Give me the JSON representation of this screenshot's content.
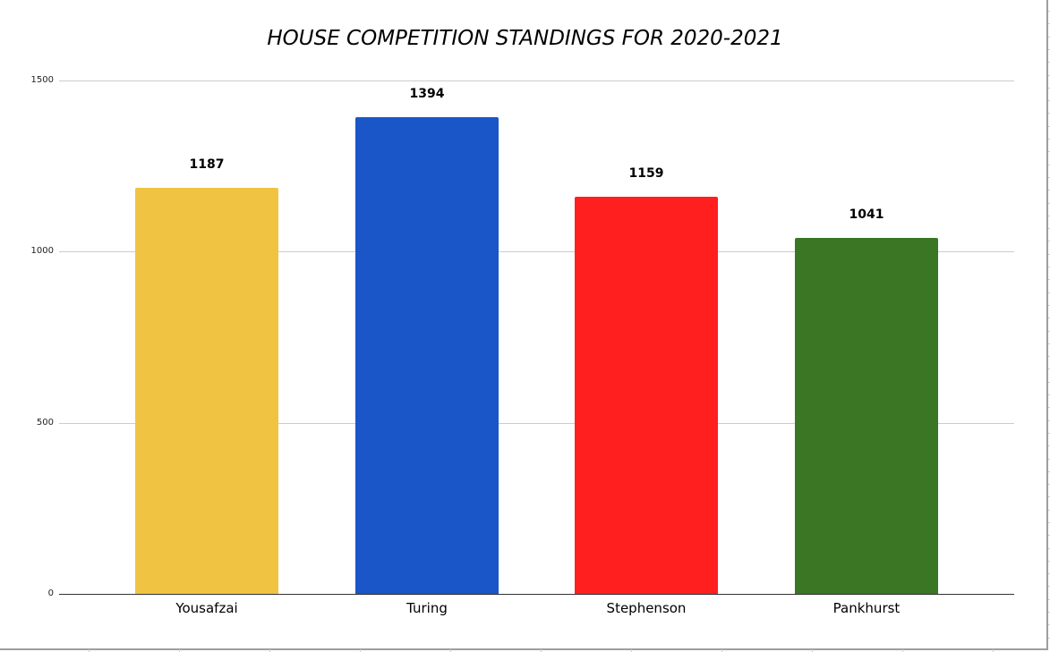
{
  "chart_data": {
    "type": "bar",
    "title": "HOUSE COMPETITION STANDINGS FOR 2020-2021",
    "categories": [
      "Yousafzai",
      "Turing",
      "Stephenson",
      "Pankhurst"
    ],
    "values": [
      1187,
      1394,
      1159,
      1041
    ],
    "colors": [
      "#f0c442",
      "#1a56c8",
      "#ff1f1f",
      "#3a7624"
    ],
    "data_labels": [
      "1187",
      "1394",
      "1159",
      "1041"
    ],
    "xlabel": "",
    "ylabel": "",
    "ylim": [
      0,
      1500
    ],
    "yticks": [
      0,
      500,
      1000,
      1500
    ],
    "ytick_labels": [
      "0",
      "500",
      "1000",
      "1500"
    ],
    "grid": true,
    "legend": "none"
  }
}
